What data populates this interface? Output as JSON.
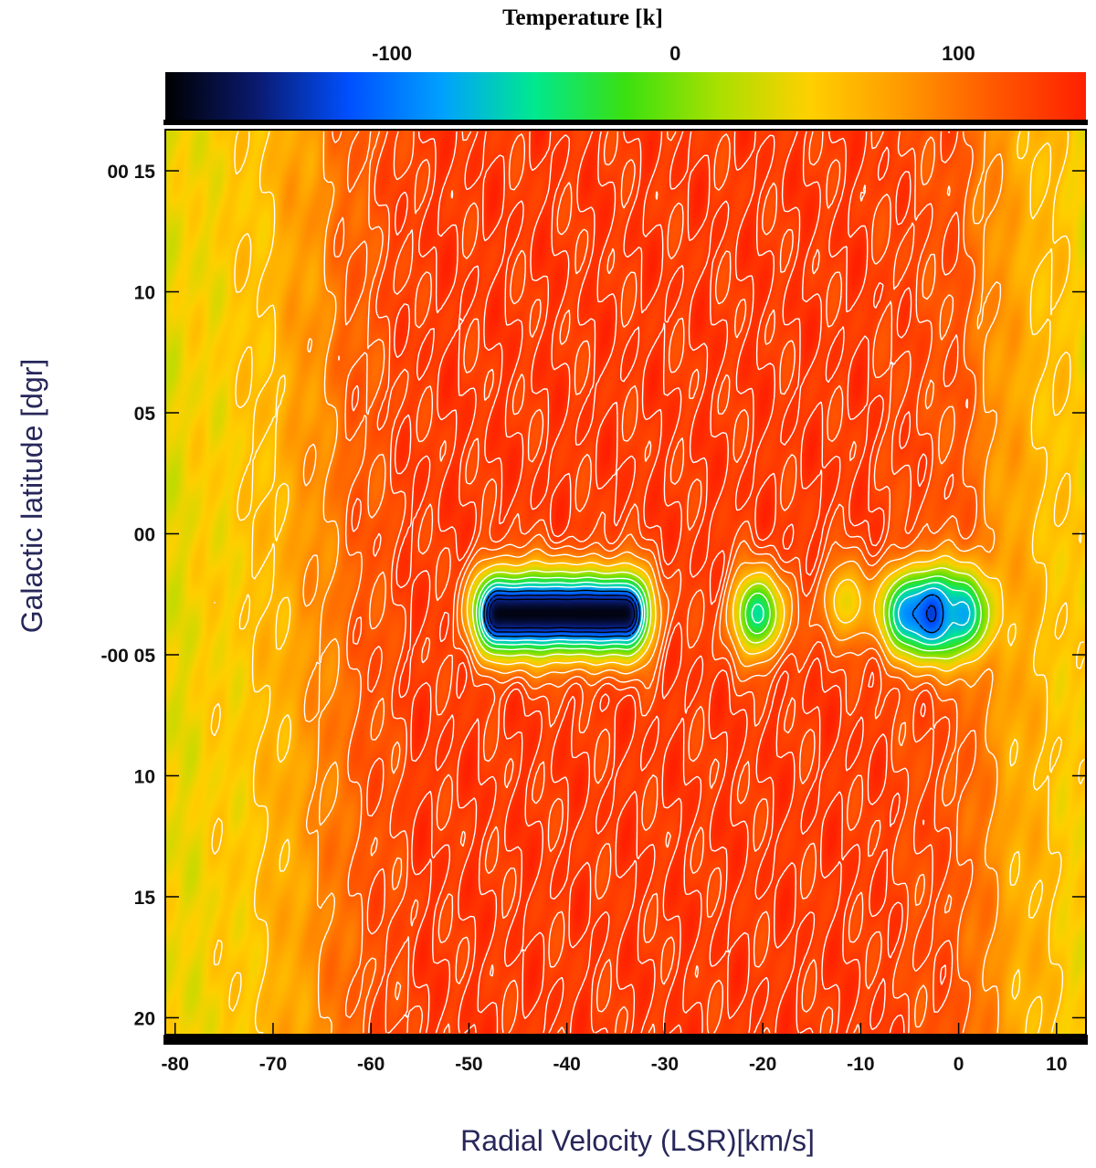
{
  "chart_data": {
    "type": "heatmap",
    "colorbar": {
      "title": "Temperature [k]",
      "range": [
        -180,
        145
      ],
      "ticks": [
        {
          "value": -100,
          "label": "-100"
        },
        {
          "value": 0,
          "label": "0"
        },
        {
          "value": 100,
          "label": "100"
        }
      ],
      "colormap": [
        "#000000",
        "#0a1a70",
        "#0050ff",
        "#00a0ff",
        "#00e890",
        "#3ae010",
        "#a8e000",
        "#ffd000",
        "#ff9a00",
        "#ff5800",
        "#ff2000"
      ]
    },
    "x_axis": {
      "label": "Radial Velocity (LSR)[km/s]",
      "range": [
        -81,
        13
      ],
      "ticks": [
        {
          "value": -80,
          "label": "-80"
        },
        {
          "value": -70,
          "label": "-70"
        },
        {
          "value": -60,
          "label": "-60"
        },
        {
          "value": -50,
          "label": "-50"
        },
        {
          "value": -40,
          "label": "-40"
        },
        {
          "value": -30,
          "label": "-30"
        },
        {
          "value": -20,
          "label": "-20"
        },
        {
          "value": -10,
          "label": "-10"
        },
        {
          "value": 0,
          "label": "0"
        },
        {
          "value": 10,
          "label": "10"
        }
      ]
    },
    "y_axis": {
      "label": "Galactic latitude [dgr]",
      "range": [
        -20.7,
        16.7
      ],
      "ticks": [
        {
          "value": 15,
          "label": "00 15"
        },
        {
          "value": 10,
          "label": "10"
        },
        {
          "value": 5,
          "label": "05"
        },
        {
          "value": 0,
          "label": "00"
        },
        {
          "value": -5,
          "label": "-00 05"
        },
        {
          "value": -10,
          "label": "10"
        },
        {
          "value": -15,
          "label": "15"
        },
        {
          "value": -20,
          "label": "20"
        }
      ]
    },
    "background_temperature": {
      "velocity": [
        -81,
        -72,
        -66,
        -62,
        -55,
        -10,
        0,
        5,
        13
      ],
      "temperature": [
        38,
        55,
        82,
        108,
        130,
        130,
        115,
        75,
        45
      ]
    },
    "absorption_features": [
      {
        "velocity": [
          -47,
          -34
        ],
        "latitude": -3.3,
        "min_temperature": -175
      },
      {
        "velocity": [
          -20.5,
          -20.5
        ],
        "latitude": -3.3,
        "min_temperature": -55
      },
      {
        "velocity": [
          -11.5,
          -11.5
        ],
        "latitude": -2.8,
        "min_temperature": 40
      },
      {
        "velocity": [
          -5.5,
          -5.5
        ],
        "latitude": -3.3,
        "min_temperature": -70
      },
      {
        "velocity": [
          -2.5,
          -2.5
        ],
        "latitude": -3.3,
        "min_temperature": -140
      },
      {
        "velocity": [
          0.5,
          0.5
        ],
        "latitude": -3.3,
        "min_temperature": -80
      }
    ],
    "contour_levels": [
      -140,
      -120,
      -95,
      -70,
      -45,
      -15,
      20,
      60,
      90,
      110,
      122,
      132
    ],
    "grid": false,
    "legend": "none"
  }
}
